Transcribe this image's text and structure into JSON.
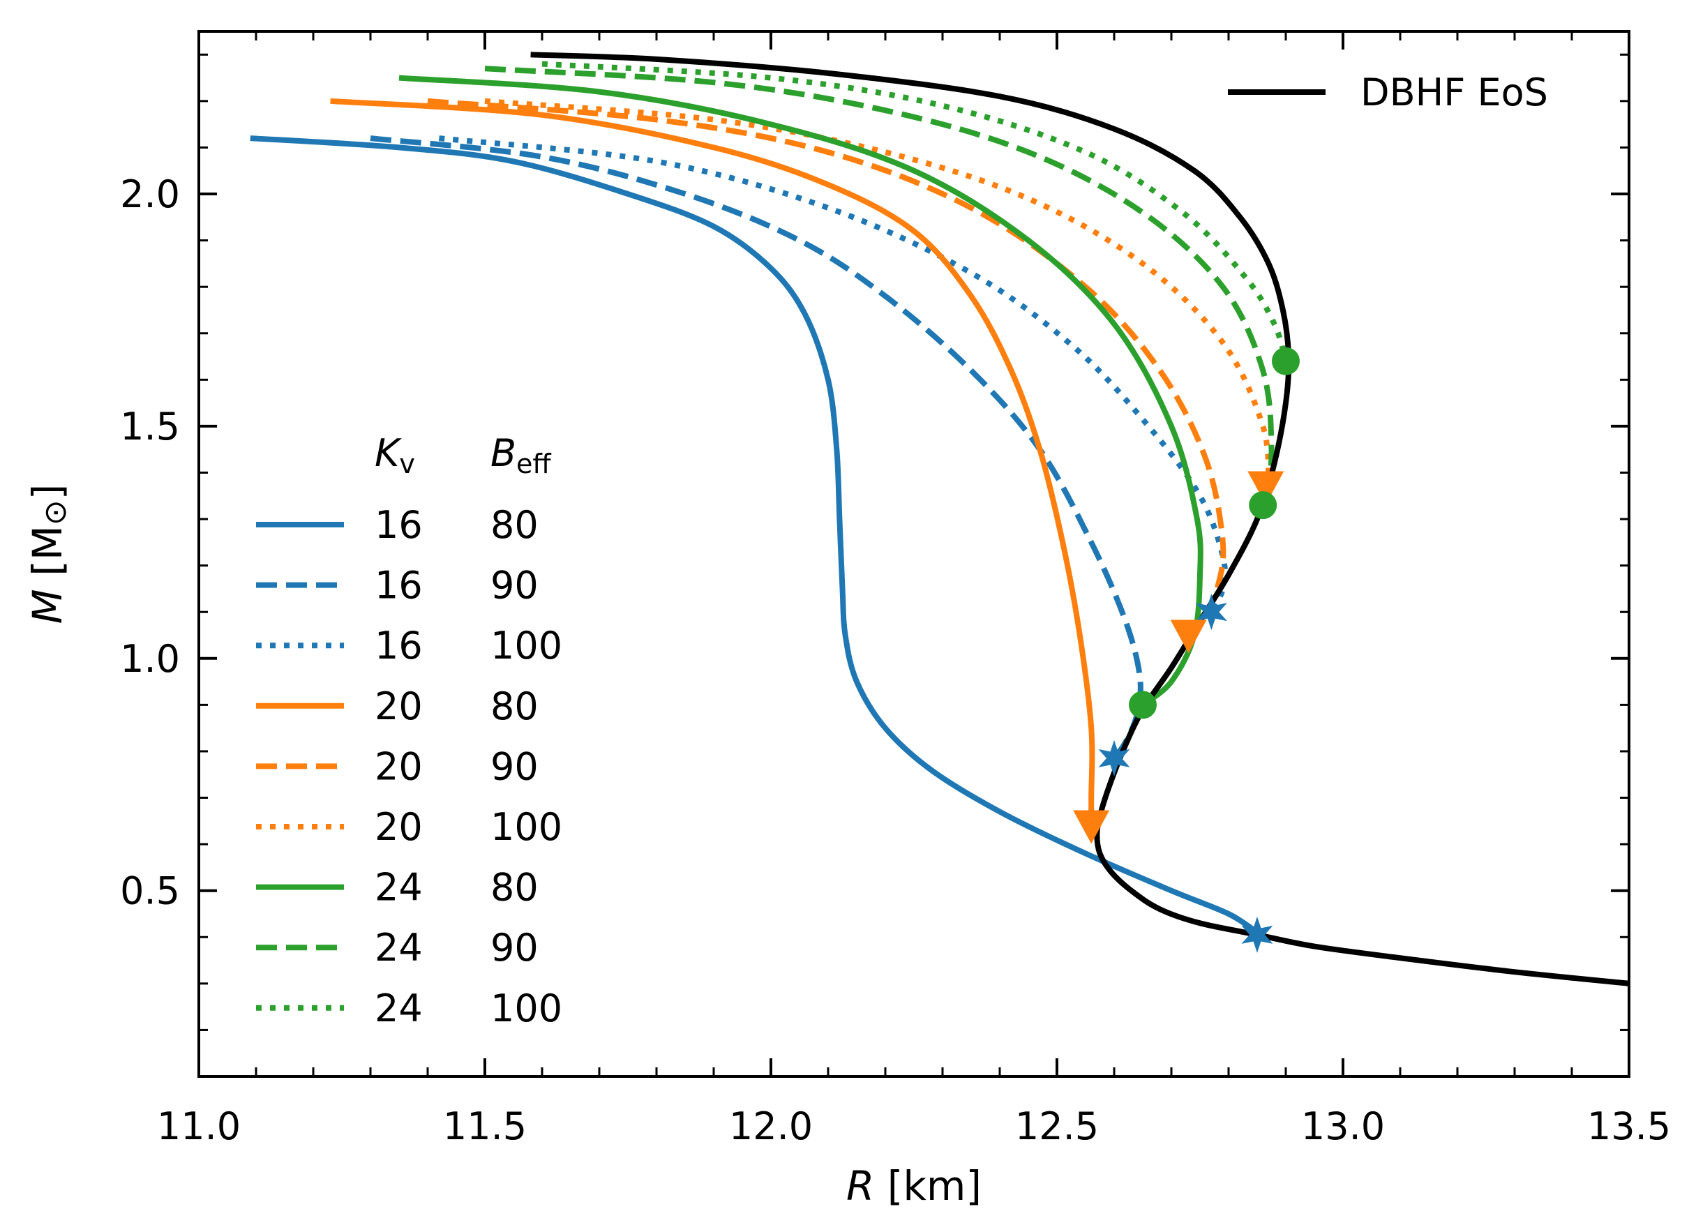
{
  "chart_data": {
    "type": "line",
    "xlabel": {
      "italic": "R",
      "rest": " [km]"
    },
    "ylabel": {
      "italic": "M",
      "rest_open": " [M",
      "sun_symbol": "⊙",
      "rest_close": "]"
    },
    "xlim": [
      11.0,
      13.5
    ],
    "ylim": [
      0.1,
      2.35
    ],
    "xticks": [
      "11.0",
      "11.5",
      "12.0",
      "12.5",
      "13.0",
      "13.5"
    ],
    "xtick_values": [
      11.0,
      11.5,
      12.0,
      12.5,
      13.0,
      13.5
    ],
    "yticks": [
      "0.5",
      "1.0",
      "1.5",
      "2.0"
    ],
    "ytick_values": [
      0.5,
      1.0,
      1.5,
      2.0
    ],
    "colors": {
      "blue": "#1f77b4",
      "orange": "#ff7f0e",
      "green": "#2ca02c",
      "black": "#000000"
    },
    "eos": {
      "name": "DBHF EoS",
      "points": [
        [
          13.5,
          0.3
        ],
        [
          13.3,
          0.325
        ],
        [
          13.1,
          0.355
        ],
        [
          12.95,
          0.38
        ],
        [
          12.85,
          0.405
        ],
        [
          12.75,
          0.43
        ],
        [
          12.68,
          0.46
        ],
        [
          12.63,
          0.5
        ],
        [
          12.595,
          0.54
        ],
        [
          12.575,
          0.58
        ],
        [
          12.57,
          0.62
        ],
        [
          12.575,
          0.66
        ],
        [
          12.59,
          0.72
        ],
        [
          12.615,
          0.8
        ],
        [
          12.65,
          0.89
        ],
        [
          12.7,
          0.98
        ],
        [
          12.75,
          1.08
        ],
        [
          12.8,
          1.18
        ],
        [
          12.85,
          1.3
        ],
        [
          12.88,
          1.42
        ],
        [
          12.9,
          1.55
        ],
        [
          12.905,
          1.65
        ],
        [
          12.895,
          1.75
        ],
        [
          12.87,
          1.85
        ],
        [
          12.82,
          1.95
        ],
        [
          12.74,
          2.05
        ],
        [
          12.6,
          2.14
        ],
        [
          12.4,
          2.21
        ],
        [
          12.1,
          2.26
        ],
        [
          11.8,
          2.29
        ],
        [
          11.58,
          2.3
        ]
      ]
    },
    "legend_headers": {
      "kv_italic": "K",
      "kv_sub": "v",
      "beff_italic": "B",
      "beff_sub": "eff"
    },
    "series": [
      {
        "kv": "16",
        "beff": "80",
        "color": "#1f77b4",
        "style": "solid",
        "points": [
          [
            11.09,
            2.12
          ],
          [
            11.35,
            2.1
          ],
          [
            11.55,
            2.07
          ],
          [
            11.75,
            2.0
          ],
          [
            11.9,
            1.93
          ],
          [
            12.0,
            1.84
          ],
          [
            12.06,
            1.74
          ],
          [
            12.1,
            1.6
          ],
          [
            12.115,
            1.45
          ],
          [
            12.12,
            1.3
          ],
          [
            12.125,
            1.15
          ],
          [
            12.13,
            1.05
          ],
          [
            12.15,
            0.95
          ],
          [
            12.2,
            0.85
          ],
          [
            12.28,
            0.76
          ],
          [
            12.4,
            0.67
          ],
          [
            12.55,
            0.58
          ],
          [
            12.7,
            0.5
          ],
          [
            12.8,
            0.45
          ],
          [
            12.85,
            0.41
          ]
        ],
        "marker": {
          "shape": "star",
          "x": 12.85,
          "y": 0.405
        }
      },
      {
        "kv": "16",
        "beff": "90",
        "color": "#1f77b4",
        "style": "dashed",
        "points": [
          [
            11.3,
            2.12
          ],
          [
            11.6,
            2.08
          ],
          [
            11.85,
            2.0
          ],
          [
            12.05,
            1.9
          ],
          [
            12.2,
            1.78
          ],
          [
            12.35,
            1.62
          ],
          [
            12.47,
            1.45
          ],
          [
            12.56,
            1.25
          ],
          [
            12.62,
            1.08
          ],
          [
            12.645,
            0.96
          ],
          [
            12.64,
            0.88
          ],
          [
            12.62,
            0.82
          ],
          [
            12.6,
            0.785
          ]
        ],
        "marker": {
          "shape": "star",
          "x": 12.6,
          "y": 0.785
        }
      },
      {
        "kv": "16",
        "beff": "100",
        "color": "#1f77b4",
        "style": "dotted",
        "points": [
          [
            11.42,
            2.12
          ],
          [
            11.8,
            2.07
          ],
          [
            12.1,
            1.97
          ],
          [
            12.35,
            1.83
          ],
          [
            12.53,
            1.67
          ],
          [
            12.66,
            1.5
          ],
          [
            12.75,
            1.35
          ],
          [
            12.79,
            1.22
          ],
          [
            12.79,
            1.15
          ],
          [
            12.77,
            1.1
          ]
        ],
        "marker": {
          "shape": "star",
          "x": 12.77,
          "y": 1.1
        }
      },
      {
        "kv": "20",
        "beff": "80",
        "color": "#ff7f0e",
        "style": "solid",
        "points": [
          [
            11.23,
            2.2
          ],
          [
            11.6,
            2.17
          ],
          [
            11.9,
            2.1
          ],
          [
            12.1,
            2.02
          ],
          [
            12.25,
            1.92
          ],
          [
            12.35,
            1.78
          ],
          [
            12.42,
            1.62
          ],
          [
            12.47,
            1.45
          ],
          [
            12.51,
            1.25
          ],
          [
            12.54,
            1.05
          ],
          [
            12.56,
            0.85
          ],
          [
            12.56,
            0.7
          ],
          [
            12.56,
            0.64
          ]
        ],
        "marker": {
          "shape": "triangle",
          "x": 12.56,
          "y": 0.64
        }
      },
      {
        "kv": "20",
        "beff": "90",
        "color": "#ff7f0e",
        "style": "dashed",
        "points": [
          [
            11.4,
            2.2
          ],
          [
            11.8,
            2.16
          ],
          [
            12.1,
            2.09
          ],
          [
            12.35,
            1.97
          ],
          [
            12.55,
            1.8
          ],
          [
            12.68,
            1.62
          ],
          [
            12.76,
            1.43
          ],
          [
            12.79,
            1.25
          ],
          [
            12.78,
            1.15
          ],
          [
            12.76,
            1.1
          ],
          [
            12.73,
            1.05
          ]
        ],
        "marker": {
          "shape": "triangle",
          "x": 12.73,
          "y": 1.05
        }
      },
      {
        "kv": "20",
        "beff": "100",
        "color": "#ff7f0e",
        "style": "dotted",
        "points": [
          [
            11.5,
            2.2
          ],
          [
            11.9,
            2.16
          ],
          [
            12.2,
            2.09
          ],
          [
            12.45,
            1.99
          ],
          [
            12.65,
            1.85
          ],
          [
            12.79,
            1.68
          ],
          [
            12.86,
            1.5
          ],
          [
            12.87,
            1.37
          ]
        ],
        "marker": {
          "shape": "triangle",
          "x": 12.865,
          "y": 1.37
        }
      },
      {
        "kv": "24",
        "beff": "80",
        "color": "#2ca02c",
        "style": "solid",
        "points": [
          [
            11.35,
            2.25
          ],
          [
            11.7,
            2.22
          ],
          [
            12.0,
            2.15
          ],
          [
            12.25,
            2.05
          ],
          [
            12.45,
            1.9
          ],
          [
            12.6,
            1.72
          ],
          [
            12.7,
            1.5
          ],
          [
            12.745,
            1.3
          ],
          [
            12.75,
            1.18
          ],
          [
            12.74,
            1.05
          ],
          [
            12.7,
            0.95
          ],
          [
            12.65,
            0.9
          ]
        ],
        "marker": {
          "shape": "circle",
          "x": 12.65,
          "y": 0.9
        }
      },
      {
        "kv": "24",
        "beff": "90",
        "color": "#2ca02c",
        "style": "dashed",
        "points": [
          [
            11.5,
            2.27
          ],
          [
            11.9,
            2.24
          ],
          [
            12.2,
            2.18
          ],
          [
            12.45,
            2.09
          ],
          [
            12.65,
            1.96
          ],
          [
            12.79,
            1.8
          ],
          [
            12.86,
            1.62
          ],
          [
            12.875,
            1.45
          ],
          [
            12.865,
            1.33
          ]
        ],
        "marker": {
          "shape": "circle",
          "x": 12.86,
          "y": 1.33
        }
      },
      {
        "kv": "24",
        "beff": "100",
        "color": "#2ca02c",
        "style": "dotted",
        "points": [
          [
            11.6,
            2.28
          ],
          [
            12.0,
            2.25
          ],
          [
            12.3,
            2.19
          ],
          [
            12.55,
            2.09
          ],
          [
            12.72,
            1.96
          ],
          [
            12.83,
            1.82
          ],
          [
            12.88,
            1.72
          ],
          [
            12.9,
            1.64
          ]
        ],
        "marker": {
          "shape": "circle",
          "x": 12.9,
          "y": 1.64
        }
      }
    ]
  }
}
